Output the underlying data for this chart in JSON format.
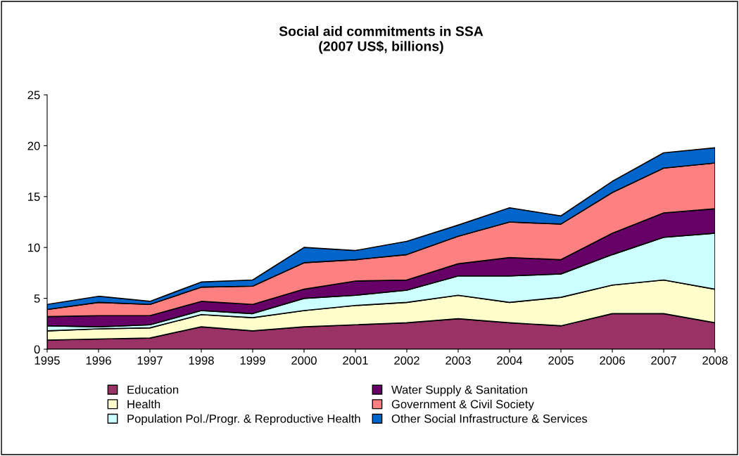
{
  "chart_data": {
    "type": "area",
    "stacked": true,
    "title": "Social aid commitments in SSA\n(2007 US$, billions)",
    "x": [
      1995,
      1996,
      1997,
      1998,
      1999,
      2000,
      2001,
      2002,
      2003,
      2004,
      2005,
      2006,
      2007,
      2008
    ],
    "xlim": [
      1995,
      2008
    ],
    "xticks": [
      1995,
      1996,
      1997,
      1998,
      1999,
      2000,
      2001,
      2002,
      2003,
      2004,
      2005,
      2006,
      2007,
      2008
    ],
    "ylim": [
      0,
      25
    ],
    "yticks": [
      0,
      5,
      10,
      15,
      20,
      25
    ],
    "grid": false,
    "legend": "bottom",
    "series": [
      {
        "name": "Education",
        "color": "#993366",
        "values": [
          0.9,
          1.0,
          1.1,
          2.2,
          1.8,
          2.2,
          2.4,
          2.6,
          3.0,
          2.6,
          2.3,
          3.5,
          3.5,
          2.6
        ]
      },
      {
        "name": "Health",
        "color": "#ffffcc",
        "values": [
          0.9,
          1.0,
          1.0,
          1.2,
          1.3,
          1.6,
          1.9,
          2.0,
          2.3,
          2.0,
          2.8,
          2.8,
          3.3,
          3.3
        ]
      },
      {
        "name": "Population Pol./Progr. & Reproductive Health",
        "color": "#ccffff",
        "values": [
          0.5,
          0.2,
          0.3,
          0.4,
          0.4,
          1.2,
          1.0,
          1.2,
          1.9,
          2.6,
          2.3,
          3.0,
          4.2,
          5.5
        ]
      },
      {
        "name": "Water Supply & Sanitation",
        "color": "#660066",
        "values": [
          0.9,
          1.1,
          0.9,
          0.9,
          0.9,
          0.9,
          1.4,
          1.0,
          1.2,
          1.8,
          1.4,
          2.1,
          2.4,
          2.4
        ]
      },
      {
        "name": "Government & Civil Society",
        "color": "#ff8080",
        "values": [
          0.7,
          1.3,
          1.1,
          1.4,
          1.8,
          2.6,
          2.1,
          2.5,
          2.7,
          3.5,
          3.5,
          4.0,
          4.4,
          4.5
        ]
      },
      {
        "name": "Other Social Infrastructure & Services",
        "color": "#0066cc",
        "values": [
          0.5,
          0.6,
          0.3,
          0.5,
          0.6,
          1.5,
          0.9,
          1.3,
          1.1,
          1.4,
          0.8,
          1.1,
          1.5,
          1.5
        ]
      }
    ]
  }
}
